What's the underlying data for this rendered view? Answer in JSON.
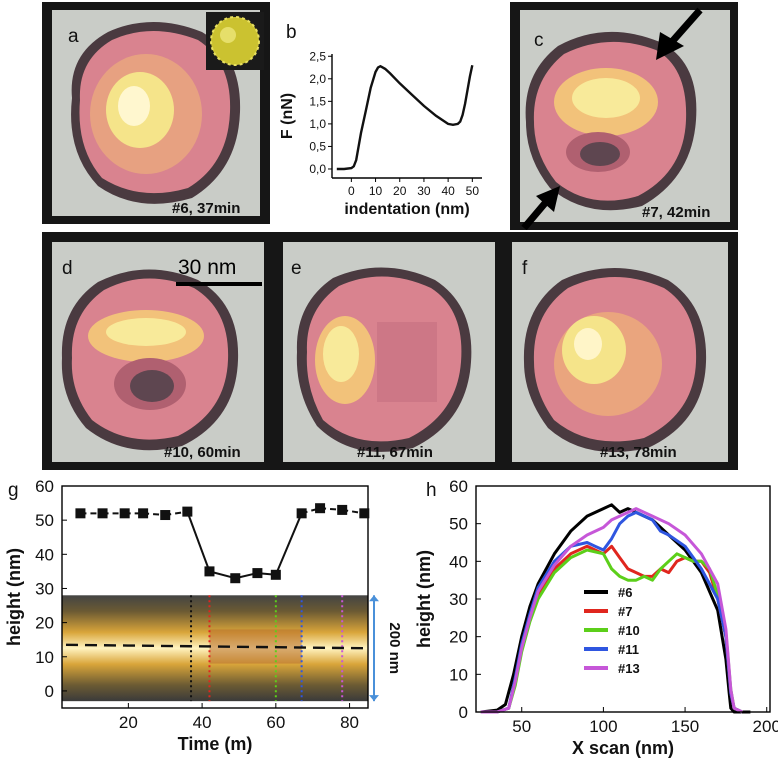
{
  "figure": {
    "panels": [
      {
        "id": "a",
        "label": "a",
        "caption": "#6, 37min",
        "hole": false,
        "inset_icon": "virus-capsid-icon"
      },
      {
        "id": "c",
        "label": "c",
        "caption": "#7, 42min",
        "hole": true,
        "arrows": 2
      },
      {
        "id": "d",
        "label": "d",
        "caption": "#10, 60min",
        "hole": true,
        "scale_bar": "30 nm"
      },
      {
        "id": "e",
        "label": "e",
        "caption": "#11, 67min",
        "hole": false,
        "split": true
      },
      {
        "id": "f",
        "label": "f",
        "caption": "#13, 78min",
        "hole": false
      }
    ],
    "colors": {
      "frame": "#161616",
      "background": "#c9ccc7",
      "particle_edge": "#4a3a40",
      "particle_pink": "#d9838f",
      "particle_core": "#f5e48a"
    }
  },
  "chart_data": [
    {
      "id": "b",
      "panel_label": "b",
      "type": "line",
      "xlabel": "indentation (nm)",
      "ylabel": "F (nN)",
      "xticks": [
        "0",
        "10",
        "20",
        "30",
        "40",
        "50"
      ],
      "yticks": [
        "0,0",
        "0,5",
        "1,0",
        "1,5",
        "2,0",
        "2,5"
      ],
      "xlim": [
        -8,
        54
      ],
      "ylim": [
        -0.2,
        2.55
      ],
      "x": [
        -6,
        -3,
        0,
        1,
        2,
        3,
        4,
        6,
        8,
        10,
        11,
        12,
        14,
        16,
        20,
        25,
        30,
        35,
        40,
        42,
        44,
        45,
        46,
        47,
        48,
        49,
        50
      ],
      "y": [
        0.0,
        0.0,
        0.02,
        0.06,
        0.2,
        0.5,
        0.8,
        1.3,
        1.8,
        2.15,
        2.25,
        2.28,
        2.22,
        2.12,
        1.9,
        1.65,
        1.4,
        1.18,
        1.0,
        0.98,
        1.0,
        1.05,
        1.2,
        1.45,
        1.75,
        2.05,
        2.3
      ]
    },
    {
      "id": "g",
      "panel_label": "g",
      "type": "line",
      "xlabel": "Time (m)",
      "ylabel": "height (nm)",
      "xticks": [
        "20",
        "40",
        "60",
        "80"
      ],
      "yticks": [
        "0",
        "10",
        "20",
        "30",
        "40",
        "50",
        "60"
      ],
      "xlim": [
        2,
        85
      ],
      "ylim": [
        -5,
        60
      ],
      "right_annotation": "200 nm",
      "series": [
        {
          "name": "height",
          "x": [
            7,
            13,
            19,
            24,
            30,
            36,
            42,
            49,
            55,
            60,
            67,
            72,
            78,
            84
          ],
          "y": [
            52,
            52,
            52,
            52,
            51.5,
            52.5,
            35,
            33,
            34.5,
            34,
            52,
            53.5,
            53,
            52
          ]
        }
      ],
      "kymograph_markers": [
        {
          "time": 37,
          "color": "#111111"
        },
        {
          "time": 42,
          "color": "#e0261e"
        },
        {
          "time": 60,
          "color": "#5ccf1a"
        },
        {
          "time": 67,
          "color": "#2f56e0"
        },
        {
          "time": 78,
          "color": "#c657d8"
        }
      ]
    },
    {
      "id": "h",
      "panel_label": "h",
      "type": "line",
      "xlabel": "X scan (nm)",
      "ylabel": "height (nm)",
      "xticks": [
        "50",
        "100",
        "150",
        "200"
      ],
      "yticks": [
        "0",
        "10",
        "20",
        "30",
        "40",
        "50",
        "60"
      ],
      "xlim": [
        22,
        202
      ],
      "ylim": [
        0,
        60
      ],
      "series": [
        {
          "name": "#6",
          "color": "#000000",
          "x": [
            25,
            35,
            40,
            45,
            50,
            55,
            60,
            70,
            80,
            90,
            100,
            105,
            110,
            115,
            120,
            125,
            130,
            140,
            150,
            160,
            170,
            175,
            177,
            178,
            180,
            185,
            190
          ],
          "y": [
            0,
            0.5,
            2,
            10,
            20,
            28,
            34,
            42,
            48,
            52,
            54,
            55,
            53,
            54,
            53,
            52,
            51,
            47,
            43,
            37,
            27,
            14,
            5,
            1,
            0,
            0,
            0
          ]
        },
        {
          "name": "#7",
          "color": "#e0261e",
          "x": [
            25,
            35,
            42,
            46,
            50,
            55,
            60,
            70,
            80,
            90,
            95,
            100,
            105,
            110,
            115,
            120,
            125,
            130,
            135,
            140,
            145,
            150,
            155,
            160,
            165,
            170,
            175,
            178,
            180,
            185
          ],
          "y": [
            0,
            0,
            1,
            8,
            17,
            25,
            31,
            38,
            42,
            44,
            43,
            42,
            44,
            41,
            38,
            37,
            36,
            36,
            38,
            37,
            40,
            41,
            40,
            40,
            37,
            30,
            20,
            5,
            1,
            0
          ]
        },
        {
          "name": "#10",
          "color": "#5ccf1a",
          "x": [
            25,
            35,
            42,
            46,
            50,
            55,
            60,
            70,
            80,
            90,
            100,
            105,
            110,
            115,
            120,
            125,
            130,
            135,
            140,
            145,
            150,
            155,
            160,
            165,
            170,
            175,
            178,
            180,
            185
          ],
          "y": [
            0,
            0,
            1,
            7,
            16,
            24,
            30,
            37,
            41,
            43,
            42,
            38,
            36,
            35,
            35,
            36,
            35,
            38,
            40,
            42,
            41,
            40,
            40,
            38,
            31,
            21,
            6,
            1,
            0
          ]
        },
        {
          "name": "#11",
          "color": "#2f56e0",
          "x": [
            25,
            35,
            42,
            46,
            50,
            55,
            60,
            70,
            80,
            90,
            95,
            100,
            105,
            110,
            115,
            120,
            125,
            130,
            135,
            140,
            150,
            160,
            170,
            175,
            178,
            180,
            185
          ],
          "y": [
            0,
            0,
            1,
            9,
            18,
            26,
            33,
            40,
            44,
            45,
            44,
            43,
            46,
            50,
            52,
            53,
            52,
            51,
            48,
            47,
            44,
            38,
            30,
            20,
            5,
            1,
            0
          ]
        },
        {
          "name": "#13",
          "color": "#c657d8",
          "x": [
            25,
            35,
            42,
            46,
            50,
            55,
            60,
            70,
            80,
            90,
            100,
            105,
            110,
            115,
            120,
            125,
            130,
            140,
            150,
            160,
            170,
            175,
            178,
            180,
            185
          ],
          "y": [
            0,
            0,
            1,
            8,
            17,
            25,
            32,
            39,
            44,
            47,
            49,
            51,
            52,
            53,
            54,
            53,
            52,
            50,
            47,
            42,
            34,
            22,
            6,
            1,
            0
          ]
        }
      ]
    }
  ]
}
